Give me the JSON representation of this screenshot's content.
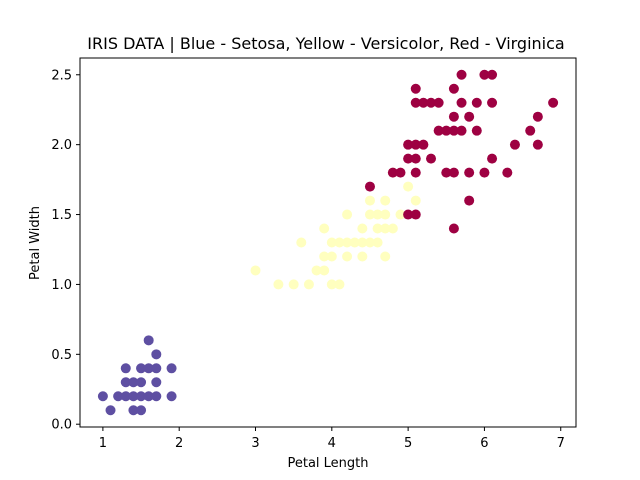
{
  "chart_data": {
    "type": "scatter",
    "title": "IRIS DATA | Blue - Setosa, Yellow - Versicolor, Red - Virginica",
    "xlabel": "Petal Length",
    "ylabel": "Petal Width",
    "xlim": [
      0.7,
      7.2
    ],
    "ylim": [
      -0.02,
      2.62
    ],
    "xticks": [
      1,
      2,
      3,
      4,
      5,
      6,
      7
    ],
    "xtick_labels": [
      "1",
      "2",
      "3",
      "4",
      "5",
      "6",
      "7"
    ],
    "yticks": [
      0.0,
      0.5,
      1.0,
      1.5,
      2.0,
      2.5
    ],
    "ytick_labels": [
      "0.0",
      "0.5",
      "1.0",
      "1.5",
      "2.0",
      "2.5"
    ],
    "grid": false,
    "series": [
      {
        "color": "#5e4fa2",
        "points": [
          [
            1.0,
            0.2
          ],
          [
            1.1,
            0.1
          ],
          [
            1.2,
            0.2
          ],
          [
            1.3,
            0.2
          ],
          [
            1.3,
            0.3
          ],
          [
            1.3,
            0.4
          ],
          [
            1.4,
            0.1
          ],
          [
            1.4,
            0.2
          ],
          [
            1.4,
            0.3
          ],
          [
            1.5,
            0.1
          ],
          [
            1.5,
            0.2
          ],
          [
            1.5,
            0.3
          ],
          [
            1.5,
            0.4
          ],
          [
            1.6,
            0.2
          ],
          [
            1.6,
            0.4
          ],
          [
            1.6,
            0.6
          ],
          [
            1.7,
            0.2
          ],
          [
            1.7,
            0.3
          ],
          [
            1.7,
            0.4
          ],
          [
            1.7,
            0.5
          ],
          [
            1.9,
            0.2
          ],
          [
            1.9,
            0.4
          ]
        ]
      },
      {
        "color": "#ffffbf",
        "points": [
          [
            3.0,
            1.1
          ],
          [
            3.3,
            1.0
          ],
          [
            3.5,
            1.0
          ],
          [
            3.6,
            1.3
          ],
          [
            3.7,
            1.0
          ],
          [
            3.8,
            1.1
          ],
          [
            3.9,
            1.1
          ],
          [
            3.9,
            1.2
          ],
          [
            3.9,
            1.4
          ],
          [
            4.0,
            1.0
          ],
          [
            4.0,
            1.2
          ],
          [
            4.0,
            1.3
          ],
          [
            4.1,
            1.0
          ],
          [
            4.1,
            1.3
          ],
          [
            4.2,
            1.2
          ],
          [
            4.2,
            1.3
          ],
          [
            4.2,
            1.5
          ],
          [
            4.3,
            1.3
          ],
          [
            4.4,
            1.2
          ],
          [
            4.4,
            1.3
          ],
          [
            4.4,
            1.4
          ],
          [
            4.5,
            1.3
          ],
          [
            4.5,
            1.5
          ],
          [
            4.5,
            1.6
          ],
          [
            4.6,
            1.3
          ],
          [
            4.6,
            1.4
          ],
          [
            4.6,
            1.5
          ],
          [
            4.7,
            1.2
          ],
          [
            4.7,
            1.4
          ],
          [
            4.7,
            1.5
          ],
          [
            4.7,
            1.6
          ],
          [
            4.8,
            1.4
          ],
          [
            4.8,
            1.8
          ],
          [
            4.9,
            1.5
          ],
          [
            5.0,
            1.7
          ],
          [
            5.1,
            1.6
          ]
        ]
      },
      {
        "color": "#9e0142",
        "points": [
          [
            4.5,
            1.7
          ],
          [
            4.8,
            1.8
          ],
          [
            4.9,
            1.8
          ],
          [
            5.0,
            1.5
          ],
          [
            5.0,
            1.9
          ],
          [
            5.0,
            2.0
          ],
          [
            5.1,
            1.5
          ],
          [
            5.1,
            1.8
          ],
          [
            5.1,
            1.9
          ],
          [
            5.1,
            2.0
          ],
          [
            5.1,
            2.3
          ],
          [
            5.1,
            2.4
          ],
          [
            5.2,
            2.0
          ],
          [
            5.2,
            2.3
          ],
          [
            5.3,
            1.9
          ],
          [
            5.3,
            2.3
          ],
          [
            5.4,
            2.1
          ],
          [
            5.4,
            2.3
          ],
          [
            5.5,
            1.8
          ],
          [
            5.5,
            2.1
          ],
          [
            5.6,
            1.4
          ],
          [
            5.6,
            1.8
          ],
          [
            5.6,
            2.1
          ],
          [
            5.6,
            2.2
          ],
          [
            5.6,
            2.4
          ],
          [
            5.7,
            2.1
          ],
          [
            5.7,
            2.3
          ],
          [
            5.7,
            2.5
          ],
          [
            5.8,
            1.6
          ],
          [
            5.8,
            1.8
          ],
          [
            5.8,
            2.2
          ],
          [
            5.9,
            2.1
          ],
          [
            5.9,
            2.3
          ],
          [
            6.0,
            1.8
          ],
          [
            6.0,
            2.5
          ],
          [
            6.1,
            1.9
          ],
          [
            6.1,
            2.3
          ],
          [
            6.1,
            2.5
          ],
          [
            6.3,
            1.8
          ],
          [
            6.4,
            2.0
          ],
          [
            6.6,
            2.1
          ],
          [
            6.7,
            2.0
          ],
          [
            6.7,
            2.2
          ],
          [
            6.9,
            2.3
          ]
        ]
      }
    ]
  }
}
